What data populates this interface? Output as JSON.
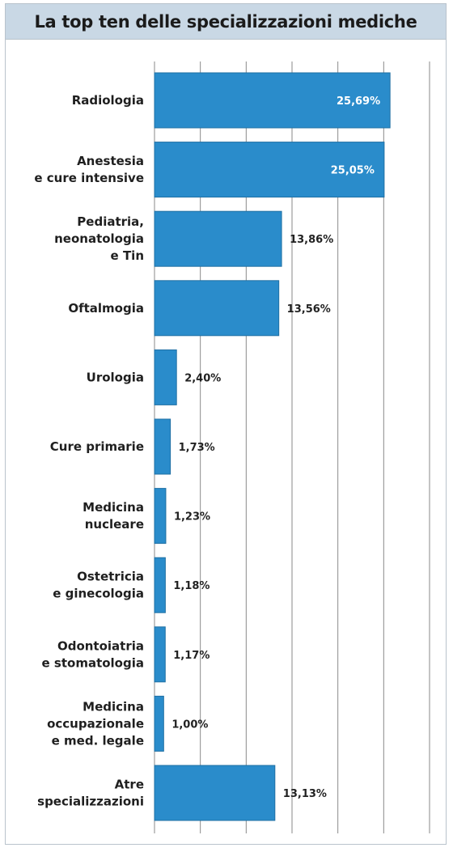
{
  "chart_data": {
    "type": "bar",
    "orientation": "horizontal",
    "title": "La top ten delle specializzazioni mediche",
    "categories": [
      [
        "Radiologia"
      ],
      [
        "Anestesia",
        "e cure intensive"
      ],
      [
        "Pediatria,",
        "neonatologia",
        "e Tin"
      ],
      [
        "Oftalmogia"
      ],
      [
        "Urologia"
      ],
      [
        "Cure primarie"
      ],
      [
        "Medicina",
        "nucleare"
      ],
      [
        "Ostetricia",
        "e ginecologia"
      ],
      [
        "Odontoiatria",
        "e stomatologia"
      ],
      [
        "Medicina",
        "occupazionale",
        "e med. legale"
      ],
      [
        "Atre",
        "specializzazioni"
      ]
    ],
    "values": [
      25.69,
      25.05,
      13.86,
      13.56,
      2.4,
      1.73,
      1.23,
      1.18,
      1.17,
      1.0,
      13.13
    ],
    "value_labels": [
      "25,69%",
      "25,05%",
      "13,86%",
      "13,56%",
      "2,40%",
      "1,73%",
      "1,23%",
      "1,18%",
      "1,17%",
      "1,00%",
      "13,13%"
    ],
    "xlim": [
      0,
      30
    ],
    "grid": true,
    "colors": {
      "bar": "#2a8ccb",
      "bar_stroke": "#1f6fa3",
      "grid": "#8a8a8a",
      "label_inside": "#ffffff",
      "label_outside": "#222222"
    }
  }
}
